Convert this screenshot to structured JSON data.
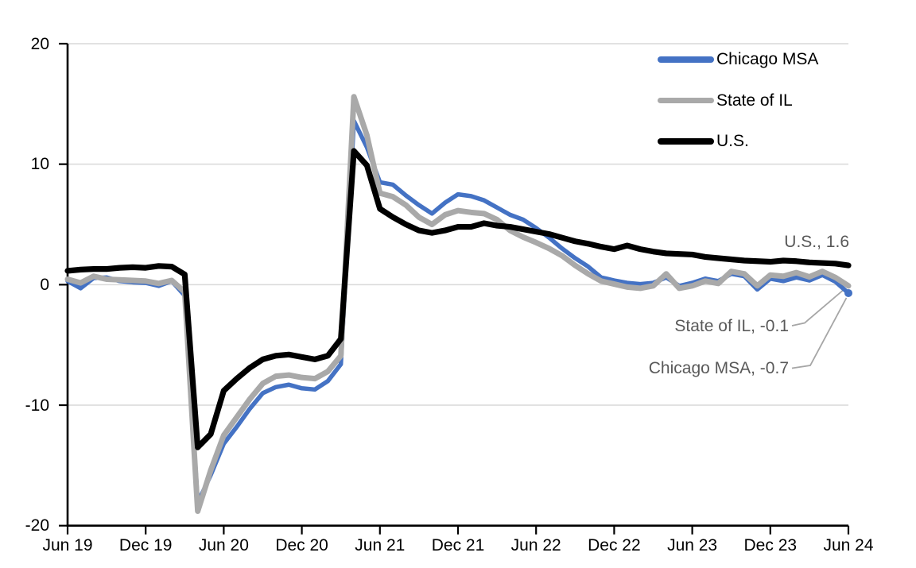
{
  "chart_data": {
    "type": "line",
    "title": "",
    "xlabel": "",
    "ylabel": "",
    "ylim": [
      -20,
      20
    ],
    "y_ticks": [
      20,
      10,
      0,
      -10,
      -20
    ],
    "x_tick_labels": [
      "Jun 19",
      "Dec 19",
      "Jun 20",
      "Dec 20",
      "Jun 21",
      "Dec 21",
      "Jun 22",
      "Dec 22",
      "Jun 23",
      "Dec 23",
      "Jun 24"
    ],
    "grid": "horizontal",
    "legend_position": "inside-top-right",
    "x": [
      "Jun 19",
      "Jul 19",
      "Aug 19",
      "Sep 19",
      "Oct 19",
      "Nov 19",
      "Dec 19",
      "Jan 20",
      "Feb 20",
      "Mar 20",
      "Apr 20",
      "May 20",
      "Jun 20",
      "Jul 20",
      "Aug 20",
      "Sep 20",
      "Oct 20",
      "Nov 20",
      "Dec 20",
      "Jan 21",
      "Feb 21",
      "Mar 21",
      "Apr 21",
      "May 21",
      "Jun 21",
      "Jul 21",
      "Aug 21",
      "Sep 21",
      "Oct 21",
      "Nov 21",
      "Dec 21",
      "Jan 22",
      "Feb 22",
      "Mar 22",
      "Apr 22",
      "May 22",
      "Jun 22",
      "Jul 22",
      "Aug 22",
      "Sep 22",
      "Oct 22",
      "Nov 22",
      "Dec 22",
      "Jan 23",
      "Feb 23",
      "Mar 23",
      "Apr 23",
      "May 23",
      "Jun 23",
      "Jul 23",
      "Aug 23",
      "Sep 23",
      "Oct 23",
      "Nov 23",
      "Dec 23",
      "Jan 24",
      "Feb 24",
      "Mar 24",
      "Apr 24",
      "May 24",
      "Jun 24"
    ],
    "series": [
      {
        "name": "Chicago MSA",
        "color": "#4472C4",
        "stroke_width": 5.5,
        "end_marker": true,
        "values": [
          0.3,
          -0.3,
          0.55,
          0.6,
          0.3,
          0.2,
          0.15,
          -0.1,
          0.3,
          -0.9,
          -18.1,
          -15.8,
          -13.2,
          -11.8,
          -10.3,
          -9.0,
          -8.5,
          -8.3,
          -8.6,
          -8.7,
          -8.0,
          -6.6,
          13.6,
          11.4,
          8.5,
          8.3,
          7.4,
          6.6,
          5.9,
          6.8,
          7.5,
          7.35,
          7.0,
          6.4,
          5.8,
          5.4,
          4.7,
          3.9,
          3.0,
          2.2,
          1.5,
          0.6,
          0.35,
          0.15,
          0.05,
          0.15,
          0.6,
          -0.1,
          0.15,
          0.5,
          0.3,
          0.9,
          0.7,
          -0.4,
          0.5,
          0.3,
          0.6,
          0.35,
          0.8,
          0.25,
          -0.7
        ]
      },
      {
        "name": "State of IL",
        "color": "#A9A9A9",
        "stroke_width": 7,
        "end_marker": false,
        "values": [
          0.45,
          0.15,
          0.7,
          0.45,
          0.4,
          0.35,
          0.3,
          0.1,
          0.35,
          -0.6,
          -18.8,
          -15.4,
          -12.5,
          -11.0,
          -9.5,
          -8.2,
          -7.6,
          -7.5,
          -7.7,
          -7.8,
          -7.2,
          -5.9,
          15.6,
          12.4,
          7.6,
          7.3,
          6.6,
          5.6,
          5.0,
          5.8,
          6.15,
          6.0,
          5.9,
          5.4,
          4.5,
          3.95,
          3.5,
          3.0,
          2.4,
          1.6,
          0.9,
          0.3,
          0.05,
          -0.2,
          -0.3,
          -0.1,
          0.9,
          -0.3,
          -0.1,
          0.3,
          0.1,
          1.1,
          0.9,
          -0.1,
          0.8,
          0.7,
          1.0,
          0.65,
          1.1,
          0.6,
          -0.1
        ]
      },
      {
        "name": "U.S.",
        "color": "#000000",
        "stroke_width": 7.2,
        "end_marker": false,
        "values": [
          1.15,
          1.25,
          1.3,
          1.3,
          1.4,
          1.45,
          1.4,
          1.55,
          1.5,
          0.85,
          -13.5,
          -12.4,
          -8.8,
          -7.8,
          -6.9,
          -6.2,
          -5.9,
          -5.8,
          -6.0,
          -6.2,
          -5.9,
          -4.5,
          11.1,
          9.9,
          6.3,
          5.6,
          5.0,
          4.5,
          4.3,
          4.5,
          4.8,
          4.8,
          5.1,
          4.9,
          4.8,
          4.6,
          4.4,
          4.2,
          3.9,
          3.6,
          3.4,
          3.15,
          2.95,
          3.25,
          2.95,
          2.75,
          2.6,
          2.55,
          2.5,
          2.3,
          2.2,
          2.1,
          2.0,
          1.95,
          1.9,
          2.0,
          1.95,
          1.85,
          1.8,
          1.75,
          1.6
        ]
      }
    ],
    "end_labels": [
      {
        "series": "U.S.",
        "value": 1.6
      },
      {
        "series": "State of IL",
        "value": -0.1
      },
      {
        "series": "Chicago MSA",
        "value": -0.7
      }
    ]
  },
  "legend": {
    "items": [
      {
        "label": "Chicago MSA",
        "color": "#4472C4"
      },
      {
        "label": "State of IL",
        "color": "#A9A9A9"
      },
      {
        "label": "U.S.",
        "color": "#000000"
      }
    ]
  },
  "annotations": {
    "us": {
      "text": "U.S., 1.6"
    },
    "il": {
      "text": "State of IL, -0.1"
    },
    "chicago": {
      "text": "Chicago MSA, -0.7"
    }
  },
  "colors": {
    "gridline": "#D9D9D9",
    "axis": "#000000",
    "annotation_text": "#595959",
    "leader_line": "#A6A6A6",
    "background": "#FFFFFF"
  }
}
